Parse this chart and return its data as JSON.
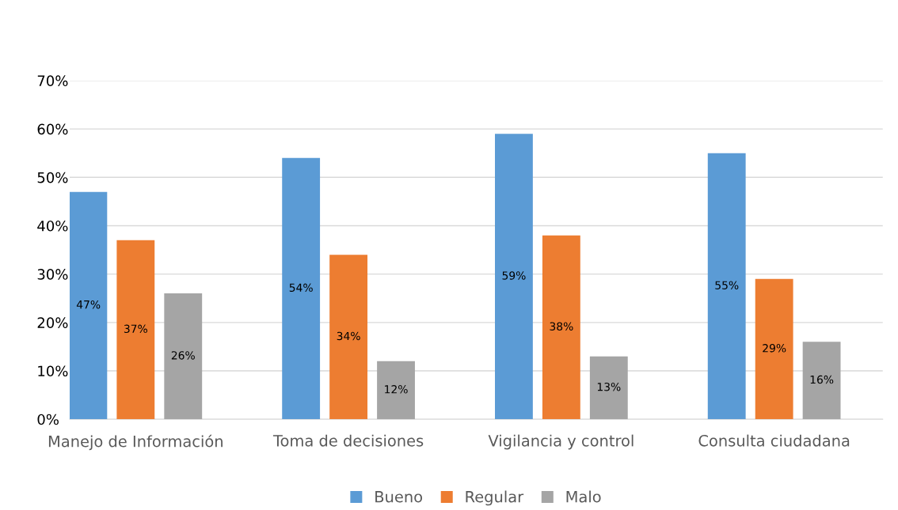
{
  "chart_data": {
    "type": "bar",
    "categories": [
      "Manejo de Información",
      "Toma de decisiones",
      "Vigilancia y control",
      "Consulta ciudadana"
    ],
    "series": [
      {
        "name": "Bueno",
        "color": "#5b9bd5",
        "values": [
          47,
          54,
          59,
          55
        ],
        "value_labels": [
          "47%",
          "54%",
          "59%",
          "55%"
        ]
      },
      {
        "name": "Regular",
        "color": "#ed7d31",
        "values": [
          37,
          34,
          38,
          29
        ],
        "value_labels": [
          "37%",
          "34%",
          "38%",
          "29%"
        ]
      },
      {
        "name": "Malo",
        "color": "#a5a5a5",
        "values": [
          26,
          12,
          13,
          16
        ],
        "value_labels": [
          "26%",
          "12%",
          "13%",
          "16%"
        ]
      }
    ],
    "ylim": [
      0,
      70
    ],
    "yticks": [
      {
        "value": 0,
        "label": "0%"
      },
      {
        "value": 10,
        "label": "10%"
      },
      {
        "value": 20,
        "label": "20%"
      },
      {
        "value": 30,
        "label": "30%"
      },
      {
        "value": 40,
        "label": "40%"
      },
      {
        "value": 50,
        "label": "50%"
      },
      {
        "value": 60,
        "label": "60%"
      },
      {
        "value": 70,
        "label": "70%"
      }
    ],
    "grid": "y",
    "legend": "bottom"
  }
}
